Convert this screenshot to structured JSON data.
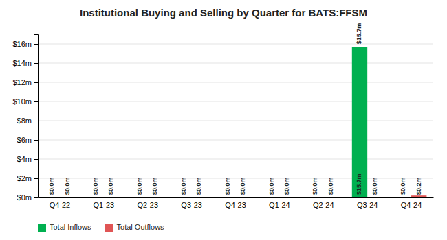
{
  "chart_data": {
    "type": "bar",
    "title": "Institutional Buying and Selling by Quarter for BATS:FFSM",
    "categories": [
      "Q4-22",
      "Q1-23",
      "Q2-23",
      "Q3-23",
      "Q4-23",
      "Q1-24",
      "Q2-24",
      "Q3-24",
      "Q4-24"
    ],
    "series": [
      {
        "name": "Total Inflows",
        "color": "#00b050",
        "values": [
          0.0,
          0.0,
          0.0,
          0.0,
          0.0,
          0.0,
          0.0,
          15700000,
          0.0
        ],
        "value_labels": [
          "$0.0m",
          "$0.0m",
          "$0.0m",
          "$0.0m",
          "$0.0m",
          "$0.0m",
          "$0.0m",
          "$15.7m",
          "$0.0m"
        ]
      },
      {
        "name": "Total Outflows",
        "color": "#e05555",
        "values": [
          0.0,
          0.0,
          0.0,
          0.0,
          0.0,
          0.0,
          0.0,
          0.0,
          200000
        ],
        "value_labels": [
          "$0.0m",
          "$0.0m",
          "$0.0m",
          "$0.0m",
          "$0.0m",
          "$0.0m",
          "$0.0m",
          "$0.0m",
          "$0.2m"
        ]
      }
    ],
    "ylim": [
      0,
      17000000
    ],
    "yticks": [
      {
        "value": 0,
        "label": "$0m"
      },
      {
        "value": 2000000,
        "label": "$2m"
      },
      {
        "value": 4000000,
        "label": "$4m"
      },
      {
        "value": 6000000,
        "label": "$6m"
      },
      {
        "value": 8000000,
        "label": "$8m"
      },
      {
        "value": 10000000,
        "label": "$10m"
      },
      {
        "value": 12000000,
        "label": "$12m"
      },
      {
        "value": 14000000,
        "label": "$14m"
      },
      {
        "value": 16000000,
        "label": "$16m"
      }
    ],
    "grid": true,
    "data_labels": true,
    "legend": "lower left"
  }
}
